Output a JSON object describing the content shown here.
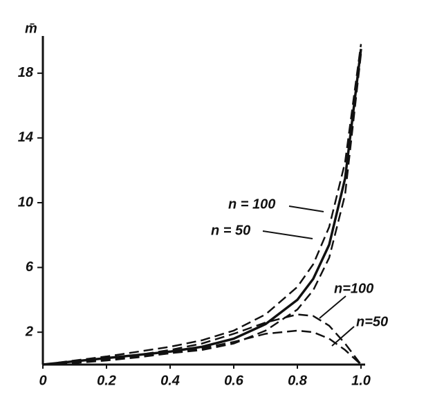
{
  "chart_data": {
    "type": "line",
    "y_label": "m̄",
    "x": [
      0,
      0.1,
      0.2,
      0.3,
      0.4,
      0.5,
      0.6,
      0.7,
      0.8,
      0.85,
      0.9,
      0.95,
      1
    ],
    "series": [
      {
        "color": "#111111",
        "style": "solid",
        "values": [
          0,
          0.2,
          0.4,
          0.6,
          0.8,
          1.1,
          1.6,
          2.5,
          4.0,
          5.3,
          7.4,
          11.5,
          19.5
        ]
      },
      {
        "color": "#111111",
        "style": "dashed",
        "values": [
          0,
          0.25,
          0.5,
          0.8,
          1.1,
          1.5,
          2.1,
          3.1,
          4.8,
          6.2,
          8.5,
          12.5,
          19.8
        ]
      },
      {
        "color": "#111111",
        "style": "dashed",
        "values": [
          0,
          0.15,
          0.3,
          0.5,
          0.7,
          0.9,
          1.3,
          2.1,
          3.4,
          4.6,
          6.6,
          10.5,
          19.2
        ]
      },
      {
        "color": "#111111",
        "style": "dashed",
        "values": [
          0,
          0.15,
          0.35,
          0.6,
          0.9,
          1.3,
          1.9,
          2.6,
          3.1,
          3.0,
          2.4,
          1.3,
          0
        ]
      },
      {
        "color": "#111111",
        "style": "dashed",
        "values": [
          0,
          0.1,
          0.25,
          0.45,
          0.7,
          1.0,
          1.4,
          1.9,
          2.1,
          2.0,
          1.6,
          0.9,
          0
        ]
      }
    ],
    "annotations": [
      "n = 100",
      "n = 50",
      "n=100",
      "n=50"
    ],
    "xlim": [
      0,
      1
    ],
    "xticks": [
      0,
      0.2,
      0.4,
      0.6,
      0.8,
      {
        "value": 1,
        "label": "1.0"
      }
    ],
    "ylim": [
      0,
      20
    ],
    "yticks": [
      2,
      6,
      10,
      14,
      18
    ]
  }
}
